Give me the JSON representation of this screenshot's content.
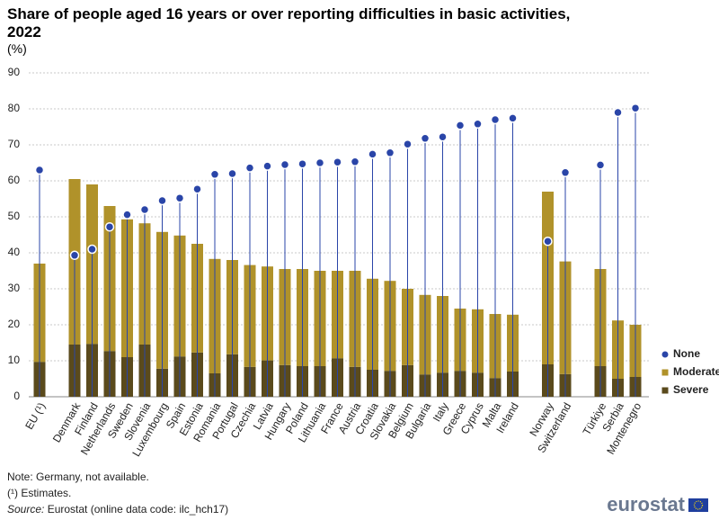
{
  "chart_data": {
    "type": "bar",
    "title": "Share of people aged 16 years or over reporting difficulties in basic activities, 2022",
    "unit_label": "(%)",
    "categories": [
      "EU (¹)",
      null,
      "Denmark",
      "Finland",
      "Netherlands",
      "Sweden",
      "Slovenia",
      "Luxembourg",
      "Spain",
      "Estonia",
      "Romania",
      "Portugal",
      "Czechia",
      "Latvia",
      "Hungary",
      "Poland",
      "Lithuania",
      "France",
      "Austria",
      "Croatia",
      "Slovakia",
      "Belgium",
      "Bulgaria",
      "Italy",
      "Greece",
      "Cyprus",
      "Malta",
      "Ireland",
      null,
      "Norway",
      "Switzerland",
      null,
      "Türkiye",
      "Serbia",
      "Montenegro"
    ],
    "series": [
      {
        "name": "None",
        "type": "scatter",
        "color": "#2a45a8",
        "values": [
          63,
          null,
          39.3,
          41,
          47.2,
          50.6,
          52,
          54.5,
          55.2,
          57.7,
          61.8,
          62,
          63.6,
          64.1,
          64.5,
          64.7,
          65,
          65.2,
          65.3,
          67.4,
          67.8,
          70.2,
          71.8,
          72.2,
          75.4,
          75.8,
          77,
          77.4,
          null,
          43.2,
          62.3,
          null,
          64.4,
          79,
          80.2
        ]
      },
      {
        "name": "Moderate",
        "type": "bar",
        "color": "#b0922a",
        "values": [
          27.3,
          null,
          46,
          44.3,
          40.3,
          38.3,
          33.7,
          38,
          33.6,
          30.2,
          31.8,
          26.2,
          28.3,
          26.1,
          26.7,
          27,
          26.5,
          24.3,
          26.7,
          25.3,
          25,
          21.2,
          22.1,
          21.3,
          17.3,
          17.6,
          17.8,
          15.8,
          null,
          48,
          31.3,
          null,
          27,
          16.2,
          14.5
        ]
      },
      {
        "name": "Severe",
        "type": "bar",
        "color": "#5a4a1c",
        "values": [
          9.7,
          null,
          14.5,
          14.7,
          12.7,
          11,
          14.5,
          7.8,
          11.2,
          12.3,
          6.5,
          11.8,
          8.3,
          10.1,
          8.8,
          8.5,
          8.5,
          10.7,
          8.3,
          7.5,
          7.2,
          8.8,
          6.2,
          6.7,
          7.2,
          6.7,
          5.2,
          7,
          null,
          9,
          6.3,
          null,
          8.5,
          5,
          5.5
        ]
      }
    ],
    "ylim": [
      0,
      90
    ],
    "yticks": [
      0,
      10,
      20,
      30,
      40,
      50,
      60,
      70,
      80,
      90
    ],
    "grid": true,
    "legend": "right",
    "notes": [
      "Note: Germany, not available.",
      "(¹) Estimates."
    ],
    "source_label": "Source:",
    "source": "Eurostat (online data code: ilc_hch17)",
    "logo": "eurostat"
  }
}
